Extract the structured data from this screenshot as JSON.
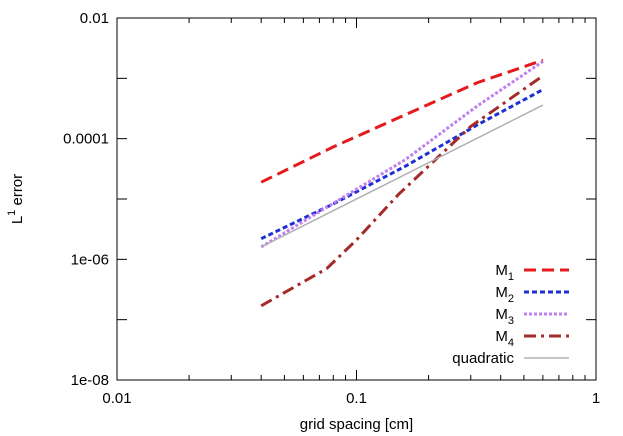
{
  "chart_data": {
    "type": "line",
    "title": "",
    "xlabel": "grid spacing [cm]",
    "ylabel": {
      "base": "L",
      "superscript": "1",
      "rest": " error"
    },
    "x_scale": "log",
    "y_scale": "log",
    "xlim": [
      0.01,
      1
    ],
    "ylim": [
      1e-08,
      0.01
    ],
    "x_ticks": [
      {
        "value": 0.01,
        "label": "0.01"
      },
      {
        "value": 0.1,
        "label": "0.1"
      },
      {
        "value": 1,
        "label": "1"
      }
    ],
    "y_ticks": [
      {
        "value": 1e-08,
        "label": "1e-08"
      },
      {
        "value": 1e-06,
        "label": "1e-06"
      },
      {
        "value": 0.0001,
        "label": "0.0001"
      },
      {
        "value": 0.01,
        "label": "0.01"
      }
    ],
    "grid": false,
    "legend_position": "bottom-right",
    "series": [
      {
        "name": "M1",
        "legend_base": "M",
        "legend_sub": "1",
        "color": "#e41a1c",
        "dash": "dashed",
        "x": [
          0.04,
          0.08,
          0.16,
          0.32,
          0.6
        ],
        "y": [
          1.9e-05,
          7.3e-05,
          0.00025,
          0.00085,
          0.002
        ]
      },
      {
        "name": "M2",
        "legend_base": "M",
        "legend_sub": "2",
        "color": "#1f2fd6",
        "dash": "dotted",
        "x": [
          0.04,
          0.08,
          0.16,
          0.32,
          0.6
        ],
        "y": [
          2.2e-06,
          8.3e-06,
          3.5e-05,
          0.00017,
          0.00065
        ]
      },
      {
        "name": "M3",
        "legend_base": "M",
        "legend_sub": "3",
        "color": "#c080f0",
        "dash": "dotted-fine",
        "x": [
          0.04,
          0.08,
          0.16,
          0.32,
          0.6
        ],
        "y": [
          1.6e-06,
          8.5e-06,
          4.5e-05,
          0.00035,
          0.0019
        ]
      },
      {
        "name": "M4",
        "legend_base": "M",
        "legend_sub": "4",
        "color": "#a52a2a",
        "dash": "dash-dot",
        "x": [
          0.04,
          0.075,
          0.1,
          0.15,
          0.3,
          0.6
        ],
        "y": [
          1.7e-07,
          7e-07,
          2.1e-06,
          1.2e-05,
          0.00016,
          0.0011
        ]
      },
      {
        "name": "quadratic",
        "legend_base": "quadratic",
        "legend_sub": "",
        "color": "#b0b0b0",
        "dash": "solid",
        "x": [
          0.04,
          0.6
        ],
        "y": [
          1.6e-06,
          0.00036
        ]
      }
    ]
  }
}
